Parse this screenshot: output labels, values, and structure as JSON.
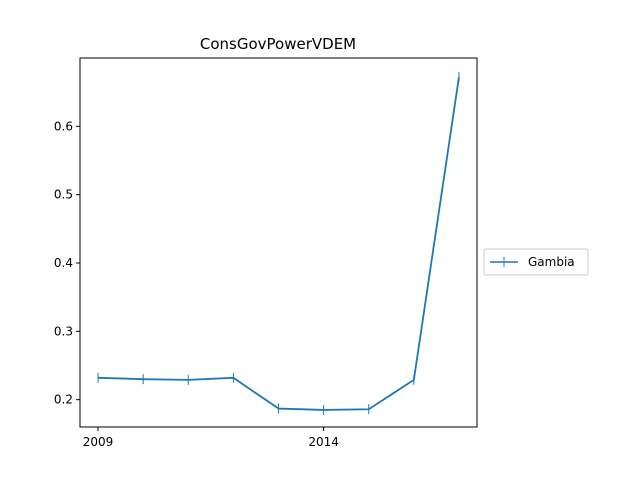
{
  "chart_data": {
    "type": "line",
    "title": "ConsGovPowerVDEM",
    "xlabel": "",
    "ylabel": "",
    "x": [
      2009,
      2010,
      2011,
      2012,
      2013,
      2014,
      2015,
      2016,
      2017
    ],
    "x_ticks": [
      2009,
      2014
    ],
    "x_tick_labels": [
      "2009",
      "2014"
    ],
    "y_ticks": [
      0.2,
      0.3,
      0.4,
      0.5,
      0.6
    ],
    "y_tick_labels": [
      "0.2",
      "0.3",
      "0.4",
      "0.5",
      "0.6"
    ],
    "xlim": [
      2008.6,
      2017.4
    ],
    "ylim": [
      0.16,
      0.7
    ],
    "grid": false,
    "legend_position": "center-right-outside",
    "series": [
      {
        "name": "Gambia",
        "color": "#1f77b4",
        "marker": "vertical-tick",
        "values": [
          0.232,
          0.23,
          0.229,
          0.232,
          0.187,
          0.185,
          0.186,
          0.229,
          0.672
        ]
      }
    ]
  }
}
